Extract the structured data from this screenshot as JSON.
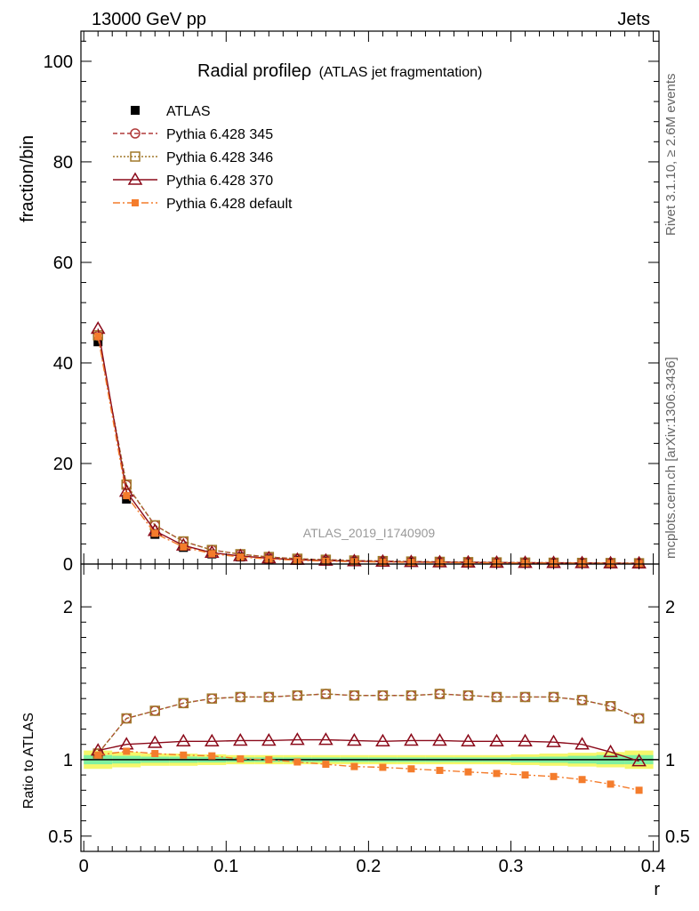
{
  "header": {
    "left": "13000 GeV pp",
    "right": "Jets"
  },
  "side": {
    "top": "Rivet 3.1.10, ≥ 2.6M events",
    "bottom": "mcplots.cern.ch [arXiv:1306.3436]"
  },
  "plot_title": {
    "main": "Radial profileρ",
    "sub": "(ATLAS jet fragmentation)"
  },
  "watermark": "ATLAS_2019_I1740909",
  "chart_data": [
    {
      "type": "line",
      "panel": "main",
      "xlabel": "r",
      "ylabel": "fraction/bin",
      "xlim": [
        -0.002,
        0.404
      ],
      "ylim": [
        0,
        106
      ],
      "xticks": [
        "0",
        "0.1",
        "0.2",
        "0.3",
        "0.4"
      ],
      "xtick_values": [
        0,
        0.1,
        0.2,
        0.3,
        0.4
      ],
      "yticks": [
        "0",
        "20",
        "40",
        "60",
        "80",
        "100"
      ],
      "ytick_values": [
        0,
        20,
        40,
        60,
        80,
        100
      ],
      "x": [
        0.01,
        0.03,
        0.05,
        0.07,
        0.09,
        0.11,
        0.13,
        0.15,
        0.17,
        0.19,
        0.21,
        0.23,
        0.25,
        0.27,
        0.29,
        0.31,
        0.33,
        0.35,
        0.37,
        0.39
      ],
      "series": [
        {
          "name": "ATLAS",
          "color": "#000000",
          "values": [
            44.2,
            12.9,
            5.9,
            3.3,
            2.0,
            1.4,
            1.0,
            0.75,
            0.6,
            0.5,
            0.42,
            0.36,
            0.31,
            0.27,
            0.24,
            0.21,
            0.19,
            0.17,
            0.15,
            0.13
          ]
        },
        {
          "name": "Pythia 6.428 345",
          "color": "#b03a3a",
          "values": [
            45.4,
            15.7,
            7.7,
            4.5,
            2.8,
            1.95,
            1.4,
            1.05,
            0.85,
            0.7,
            0.59,
            0.5,
            0.44,
            0.38,
            0.33,
            0.29,
            0.26,
            0.23,
            0.2,
            0.16
          ]
        },
        {
          "name": "Pythia 6.428 346",
          "color": "#a0792a",
          "values": [
            45.5,
            15.8,
            7.7,
            4.5,
            2.8,
            1.95,
            1.4,
            1.05,
            0.85,
            0.7,
            0.59,
            0.5,
            0.44,
            0.38,
            0.33,
            0.29,
            0.26,
            0.23,
            0.2,
            0.16
          ]
        },
        {
          "name": "Pythia 6.428 370",
          "color": "#8b0a1a",
          "values": [
            46.8,
            14.4,
            6.6,
            3.7,
            2.25,
            1.6,
            1.15,
            0.86,
            0.69,
            0.57,
            0.48,
            0.41,
            0.36,
            0.31,
            0.27,
            0.24,
            0.22,
            0.19,
            0.16,
            0.13
          ]
        },
        {
          "name": "Pythia 6.428 default",
          "color": "#f47c2c",
          "values": [
            45.3,
            13.6,
            6.1,
            3.4,
            2.05,
            1.4,
            1.0,
            0.74,
            0.58,
            0.48,
            0.4,
            0.34,
            0.29,
            0.25,
            0.22,
            0.19,
            0.17,
            0.15,
            0.13,
            0.11
          ]
        }
      ]
    },
    {
      "type": "line",
      "panel": "ratio",
      "xlabel": "r",
      "ylabel": "Ratio to ATLAS",
      "xlim": [
        -0.002,
        0.404
      ],
      "ylim": [
        0.4,
        2.28
      ],
      "yticks": [
        "0.5",
        "1",
        "2"
      ],
      "ytick_values": [
        0.5,
        1,
        2
      ],
      "x": [
        0.01,
        0.03,
        0.05,
        0.07,
        0.09,
        0.11,
        0.13,
        0.15,
        0.17,
        0.19,
        0.21,
        0.23,
        0.25,
        0.27,
        0.29,
        0.31,
        0.33,
        0.35,
        0.37,
        0.39
      ],
      "band": {
        "x_edges": [
          0.0,
          0.02,
          0.04,
          0.06,
          0.08,
          0.1,
          0.12,
          0.14,
          0.16,
          0.18,
          0.2,
          0.22,
          0.24,
          0.26,
          0.28,
          0.3,
          0.32,
          0.34,
          0.36,
          0.38,
          0.4
        ],
        "outer": [
          0.06,
          0.05,
          0.04,
          0.04,
          0.035,
          0.03,
          0.03,
          0.03,
          0.03,
          0.03,
          0.03,
          0.03,
          0.03,
          0.03,
          0.03,
          0.035,
          0.04,
          0.045,
          0.05,
          0.06
        ],
        "inner": [
          0.03,
          0.025,
          0.02,
          0.02,
          0.018,
          0.015,
          0.015,
          0.015,
          0.015,
          0.015,
          0.015,
          0.015,
          0.015,
          0.015,
          0.015,
          0.018,
          0.02,
          0.025,
          0.03,
          0.03
        ]
      },
      "series": [
        {
          "name": "Pythia 6.428 345",
          "color": "#b03a3a",
          "values": [
            1.04,
            1.27,
            1.32,
            1.37,
            1.4,
            1.41,
            1.41,
            1.42,
            1.43,
            1.42,
            1.42,
            1.42,
            1.43,
            1.42,
            1.41,
            1.41,
            1.41,
            1.39,
            1.35,
            1.27
          ]
        },
        {
          "name": "Pythia 6.428 346",
          "color": "#a0792a",
          "values": [
            1.04,
            1.27,
            1.32,
            1.37,
            1.4,
            1.41,
            1.41,
            1.42,
            1.43,
            1.42,
            1.42,
            1.42,
            1.43,
            1.42,
            1.41,
            1.41,
            1.41,
            1.39,
            1.35,
            1.27
          ]
        },
        {
          "name": "Pythia 6.428 370",
          "color": "#8b0a1a",
          "values": [
            1.06,
            1.1,
            1.11,
            1.12,
            1.12,
            1.125,
            1.125,
            1.13,
            1.13,
            1.125,
            1.12,
            1.125,
            1.125,
            1.12,
            1.12,
            1.12,
            1.115,
            1.1,
            1.05,
            0.99
          ]
        },
        {
          "name": "Pythia 6.428 default",
          "color": "#f47c2c",
          "values": [
            1.03,
            1.055,
            1.04,
            1.03,
            1.025,
            1.005,
            1.0,
            0.985,
            0.97,
            0.955,
            0.95,
            0.94,
            0.93,
            0.92,
            0.91,
            0.9,
            0.89,
            0.87,
            0.84,
            0.8
          ]
        }
      ]
    }
  ],
  "legend": [
    {
      "label": "ATLAS",
      "color": "#000000",
      "marker": "filled-square",
      "line": "none"
    },
    {
      "label": "Pythia 6.428 345",
      "color": "#b03a3a",
      "marker": "open-circle",
      "line": "dashed"
    },
    {
      "label": "Pythia 6.428 346",
      "color": "#a0792a",
      "marker": "open-square",
      "line": "dotted"
    },
    {
      "label": "Pythia 6.428 370",
      "color": "#8b0a1a",
      "marker": "open-triangle",
      "line": "solid"
    },
    {
      "label": "Pythia 6.428 default",
      "color": "#f47c2c",
      "marker": "filled-small-square",
      "line": "dashdot"
    }
  ]
}
